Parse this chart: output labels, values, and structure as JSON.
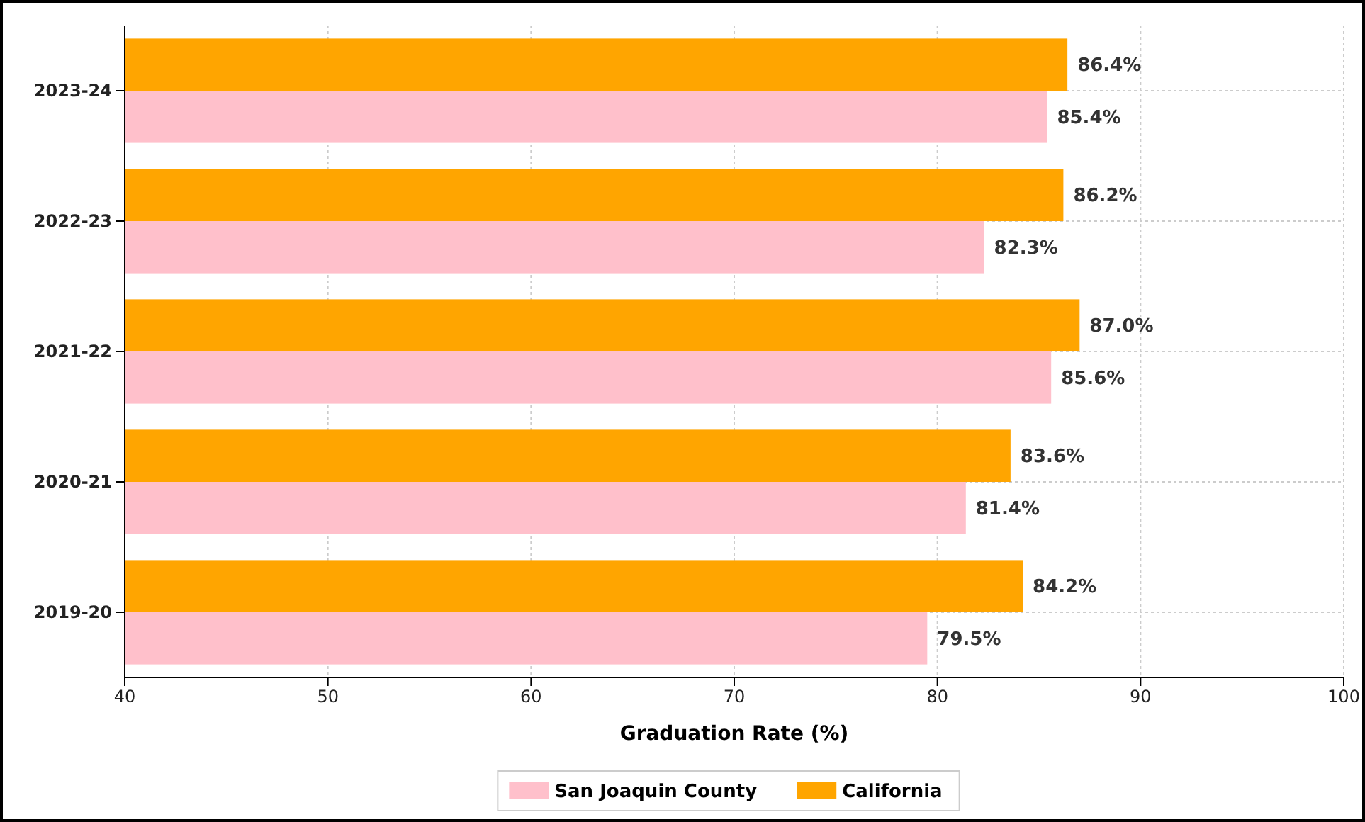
{
  "chart_data": {
    "type": "bar",
    "orientation": "horizontal",
    "xlabel": "Graduation Rate (%)",
    "categories": [
      "2023-24",
      "2022-23",
      "2021-22",
      "2020-21",
      "2019-20"
    ],
    "series": [
      {
        "name": "San Joaquin County",
        "color": "#ffc0cb",
        "values": [
          85.4,
          82.3,
          85.6,
          81.4,
          79.5
        ],
        "value_labels": [
          "85.4%",
          "82.3%",
          "85.6%",
          "81.4%",
          "79.5%"
        ]
      },
      {
        "name": "California",
        "color": "#ffa500",
        "values": [
          86.4,
          86.2,
          87.0,
          83.6,
          84.2
        ],
        "value_labels": [
          "86.4%",
          "86.2%",
          "87.0%",
          "83.6%",
          "84.2%"
        ]
      }
    ],
    "xlim": [
      40,
      100
    ],
    "xticks": [
      40,
      50,
      60,
      70,
      80,
      90,
      100
    ],
    "grid": true,
    "legend": "bottom"
  }
}
